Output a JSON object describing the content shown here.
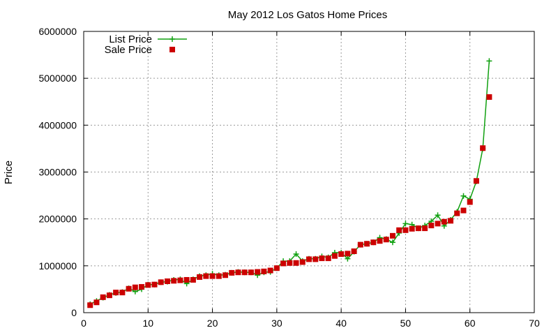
{
  "chart_data": {
    "type": "line",
    "title": "May 2012 Los Gatos Home Prices",
    "xlabel": "",
    "ylabel": "Price",
    "xlim": [
      0,
      70
    ],
    "ylim": [
      0,
      6000000
    ],
    "xticks": [
      0,
      10,
      20,
      30,
      40,
      50,
      60,
      70
    ],
    "yticks": [
      0,
      1000000,
      2000000,
      3000000,
      4000000,
      5000000,
      6000000
    ],
    "grid": true,
    "legend_position": "top-left",
    "x": [
      1,
      2,
      3,
      4,
      5,
      6,
      7,
      8,
      9,
      10,
      11,
      12,
      13,
      14,
      15,
      16,
      17,
      18,
      19,
      20,
      21,
      22,
      23,
      24,
      25,
      26,
      27,
      28,
      29,
      30,
      31,
      32,
      33,
      34,
      35,
      36,
      37,
      38,
      39,
      40,
      41,
      42,
      43,
      44,
      45,
      46,
      47,
      48,
      49,
      50,
      51,
      52,
      53,
      54,
      55,
      56,
      57,
      58,
      59,
      60,
      61,
      62,
      63
    ],
    "series": [
      {
        "name": "List Price",
        "color": "#10a010",
        "style": "line-with-plus-markers",
        "values": [
          180000,
          250000,
          320000,
          380000,
          420000,
          440000,
          520000,
          450000,
          500000,
          600000,
          600000,
          650000,
          660000,
          700000,
          710000,
          620000,
          710000,
          780000,
          800000,
          830000,
          800000,
          810000,
          850000,
          870000,
          860000,
          860000,
          800000,
          860000,
          870000,
          950000,
          1100000,
          1100000,
          1250000,
          1100000,
          1150000,
          1150000,
          1200000,
          1180000,
          1280000,
          1280000,
          1150000,
          1300000,
          1450000,
          1470000,
          1500000,
          1600000,
          1570000,
          1500000,
          1700000,
          1900000,
          1880000,
          1800000,
          1860000,
          1950000,
          2080000,
          1850000,
          1980000,
          2150000,
          2490000,
          2420000,
          2800000,
          3500000,
          5370000
        ]
      },
      {
        "name": "Sale Price",
        "color": "#cc0000",
        "style": "square-markers",
        "values": [
          160000,
          220000,
          330000,
          370000,
          430000,
          430000,
          510000,
          540000,
          550000,
          590000,
          600000,
          650000,
          670000,
          680000,
          690000,
          700000,
          700000,
          760000,
          780000,
          780000,
          780000,
          800000,
          850000,
          860000,
          860000,
          860000,
          870000,
          880000,
          900000,
          950000,
          1050000,
          1060000,
          1060000,
          1080000,
          1140000,
          1140000,
          1160000,
          1160000,
          1210000,
          1250000,
          1260000,
          1310000,
          1450000,
          1470000,
          1500000,
          1530000,
          1560000,
          1640000,
          1760000,
          1760000,
          1790000,
          1800000,
          1800000,
          1860000,
          1900000,
          1940000,
          1960000,
          2120000,
          2180000,
          2360000,
          2810000,
          3510000,
          4600000
        ]
      }
    ]
  }
}
